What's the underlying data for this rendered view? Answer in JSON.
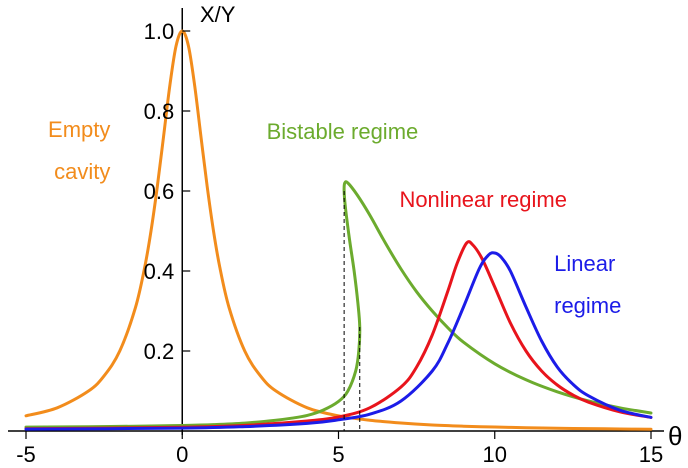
{
  "chart_data": {
    "type": "line",
    "xlabel": "θ",
    "ylabel": "X/Y",
    "xlim": [
      -5,
      15
    ],
    "ylim": [
      0,
      1.0
    ],
    "x_ticks": [
      "-5",
      "0",
      "5",
      "10",
      "15"
    ],
    "y_ticks": [
      "0.2",
      "0.4",
      "0.6",
      "0.8",
      "1.0"
    ],
    "grid": false,
    "series": [
      {
        "name": "Empty cavity",
        "color": "#f28c1c",
        "points": [
          [
            -5,
            0.038
          ],
          [
            -4,
            0.058
          ],
          [
            -3,
            0.1
          ],
          [
            -2.5,
            0.138
          ],
          [
            -2,
            0.2
          ],
          [
            -1.5,
            0.308
          ],
          [
            -1.2,
            0.41
          ],
          [
            -1,
            0.5
          ],
          [
            -0.8,
            0.61
          ],
          [
            -0.6,
            0.735
          ],
          [
            -0.4,
            0.862
          ],
          [
            -0.2,
            0.962
          ],
          [
            0,
            1.0
          ],
          [
            0.2,
            0.962
          ],
          [
            0.4,
            0.862
          ],
          [
            0.6,
            0.735
          ],
          [
            0.8,
            0.61
          ],
          [
            1,
            0.5
          ],
          [
            1.2,
            0.41
          ],
          [
            1.5,
            0.308
          ],
          [
            2,
            0.2
          ],
          [
            2.5,
            0.138
          ],
          [
            3,
            0.1
          ],
          [
            4,
            0.058
          ],
          [
            5,
            0.038
          ],
          [
            6,
            0.027
          ],
          [
            7,
            0.02
          ],
          [
            8,
            0.015
          ],
          [
            9,
            0.012
          ],
          [
            10,
            0.0099
          ],
          [
            11,
            0.0082
          ],
          [
            12,
            0.0069
          ],
          [
            13,
            0.0059
          ],
          [
            14,
            0.0051
          ],
          [
            15,
            0.0044
          ]
        ]
      },
      {
        "name": "Bistable regime",
        "color": "#6cab2e",
        "points": [
          [
            -5,
            0.0096
          ],
          [
            -3,
            0.0107
          ],
          [
            -1,
            0.0124
          ],
          [
            0,
            0.0138
          ],
          [
            1,
            0.016
          ],
          [
            2,
            0.0198
          ],
          [
            3,
            0.027
          ],
          [
            3.5,
            0.032
          ],
          [
            4,
            0.039
          ],
          [
            4.5,
            0.052
          ],
          [
            5,
            0.074
          ],
          [
            5.3,
            0.1
          ],
          [
            5.55,
            0.15
          ],
          [
            5.65,
            0.2
          ],
          [
            5.68,
            0.26
          ],
          [
            5.62,
            0.32
          ],
          [
            5.5,
            0.4
          ],
          [
            5.35,
            0.48
          ],
          [
            5.22,
            0.56
          ],
          [
            5.18,
            0.6
          ],
          [
            5.2,
            0.62
          ],
          [
            5.3,
            0.62
          ],
          [
            5.6,
            0.59
          ],
          [
            6,
            0.54
          ],
          [
            6.5,
            0.47
          ],
          [
            7,
            0.405
          ],
          [
            7.5,
            0.348
          ],
          [
            8,
            0.3
          ],
          [
            8.5,
            0.258
          ],
          [
            9,
            0.222
          ],
          [
            10,
            0.168
          ],
          [
            11,
            0.128
          ],
          [
            12,
            0.098
          ],
          [
            13,
            0.075
          ],
          [
            14,
            0.058
          ],
          [
            15,
            0.045
          ]
        ]
      },
      {
        "name": "Nonlinear regime",
        "color": "#e8141c",
        "points": [
          [
            -5,
            0.0056
          ],
          [
            0,
            0.0093
          ],
          [
            2,
            0.014
          ],
          [
            4,
            0.025
          ],
          [
            5,
            0.035
          ],
          [
            6,
            0.058
          ],
          [
            7,
            0.11
          ],
          [
            7.5,
            0.16
          ],
          [
            8,
            0.24
          ],
          [
            8.5,
            0.35
          ],
          [
            8.8,
            0.42
          ],
          [
            9.1,
            0.47
          ],
          [
            9.3,
            0.465
          ],
          [
            9.6,
            0.43
          ],
          [
            10,
            0.36
          ],
          [
            10.5,
            0.27
          ],
          [
            11,
            0.2
          ],
          [
            11.5,
            0.15
          ],
          [
            12,
            0.115
          ],
          [
            12.5,
            0.09
          ],
          [
            13,
            0.072
          ],
          [
            14,
            0.048
          ],
          [
            15,
            0.034
          ]
        ]
      },
      {
        "name": "Linear regime",
        "color": "#1c1ce8",
        "points": [
          [
            -5,
            0.0046
          ],
          [
            0,
            0.0072
          ],
          [
            2,
            0.011
          ],
          [
            4,
            0.019
          ],
          [
            5,
            0.028
          ],
          [
            6,
            0.042
          ],
          [
            7,
            0.075
          ],
          [
            8,
            0.15
          ],
          [
            8.5,
            0.22
          ],
          [
            9,
            0.31
          ],
          [
            9.5,
            0.405
          ],
          [
            9.8,
            0.44
          ],
          [
            10,
            0.445
          ],
          [
            10.2,
            0.435
          ],
          [
            10.5,
            0.4
          ],
          [
            11,
            0.31
          ],
          [
            11.5,
            0.225
          ],
          [
            12,
            0.16
          ],
          [
            12.5,
            0.117
          ],
          [
            13,
            0.088
          ],
          [
            14,
            0.052
          ],
          [
            15,
            0.034
          ]
        ]
      }
    ],
    "dashed_markers": [
      {
        "x": 5.18,
        "y_top": 0.6
      },
      {
        "x": 5.68,
        "y_top": 0.26
      }
    ],
    "annotations": [
      {
        "lines": [
          "Empty",
          "cavity"
        ],
        "color": "#f28c1c",
        "anchor": "end",
        "x": -2.3,
        "y": 0.735,
        "line_gap_units": 0.105
      },
      {
        "lines": [
          "Bistable regime"
        ],
        "color": "#6cab2e",
        "anchor": "start",
        "x": 2.7,
        "y": 0.73,
        "line_gap_units": 0
      },
      {
        "lines": [
          "Nonlinear regime"
        ],
        "color": "#e8141c",
        "anchor": "start",
        "x": 6.95,
        "y": 0.56,
        "line_gap_units": 0
      },
      {
        "lines": [
          "Linear",
          "regime"
        ],
        "color": "#1c1ce8",
        "anchor": "start",
        "x": 11.9,
        "y": 0.4,
        "line_gap_units": 0.105
      }
    ]
  }
}
